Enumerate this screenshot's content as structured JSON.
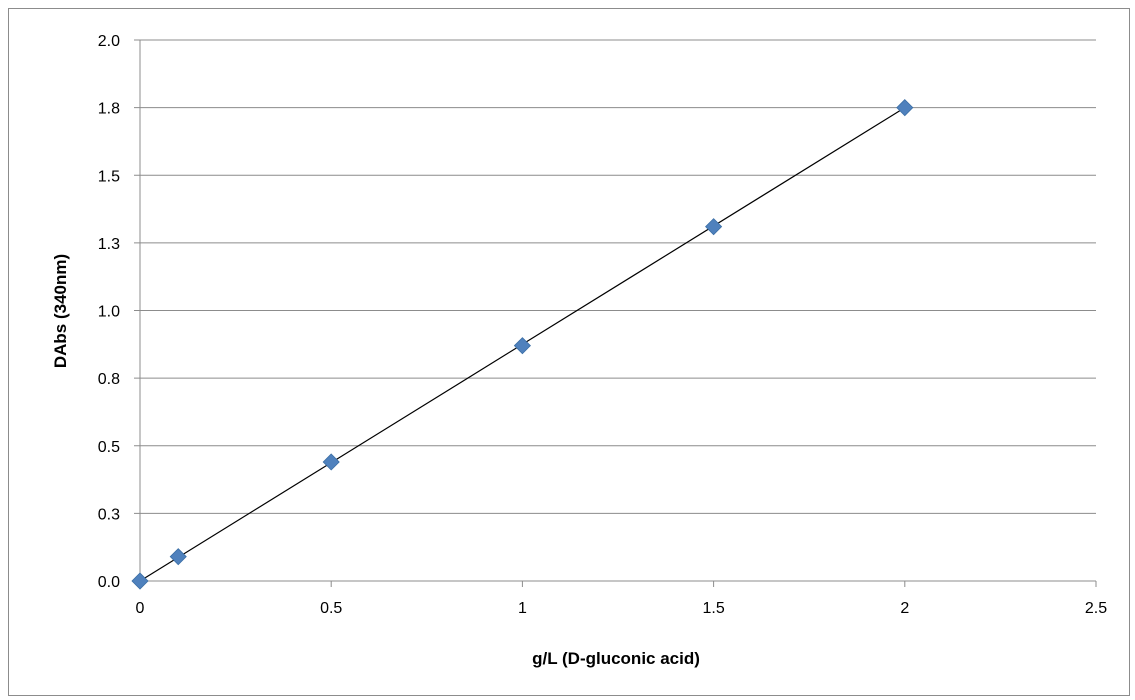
{
  "chart_data": {
    "type": "scatter",
    "title": "",
    "xlabel": "g/L (D-gluconic  acid)",
    "ylabel": "DAbs  (340nm)",
    "xlim": [
      0,
      2.5
    ],
    "ylim": [
      0,
      2.0
    ],
    "x_ticks": [
      0,
      0.5,
      1,
      1.5,
      2,
      2.5
    ],
    "x_tick_labels": [
      "0",
      "0.5",
      "1",
      "1.5",
      "2",
      "2.5"
    ],
    "y_ticks": [
      0,
      0.25,
      0.5,
      0.75,
      1.0,
      1.25,
      1.5,
      1.75,
      2.0
    ],
    "y_tick_labels": [
      "0.0",
      "0.3",
      "0.5",
      "0.8",
      "1.0",
      "1.3",
      "1.5",
      "1.8",
      "2.0"
    ],
    "grid": "horizontal",
    "legend": "none",
    "series": [
      {
        "marker": "diamond",
        "color": "#4f81bd",
        "x": [
          0,
          0.1,
          0.5,
          1.0,
          1.5,
          2.0
        ],
        "y": [
          0.0,
          0.09,
          0.44,
          0.87,
          1.31,
          1.75
        ]
      }
    ],
    "trendline": {
      "type": "linear",
      "color": "#000000",
      "x": [
        0,
        2.0
      ],
      "y": [
        0.0,
        1.75
      ]
    }
  }
}
